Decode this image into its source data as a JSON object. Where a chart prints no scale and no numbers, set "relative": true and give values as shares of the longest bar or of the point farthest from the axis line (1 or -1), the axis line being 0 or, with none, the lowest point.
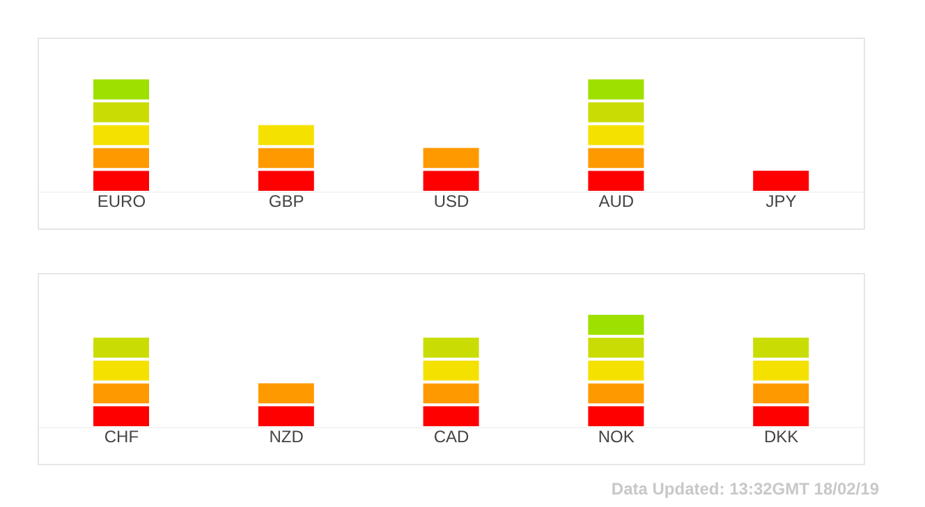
{
  "chart_data": [
    {
      "type": "bar",
      "stacked": true,
      "relative": true,
      "categories": [
        "EURO",
        "GBP",
        "USD",
        "AUD",
        "JPY"
      ],
      "series": [
        {
          "color": "#ff0000",
          "values": [
            0.2,
            0.2,
            0.2,
            0.2,
            0.2
          ]
        },
        {
          "color": "#ff9900",
          "values": [
            0.2,
            0.2,
            0.2,
            0.2,
            null
          ]
        },
        {
          "color": "#f5e100",
          "values": [
            0.2,
            0.2,
            null,
            0.2,
            null
          ]
        },
        {
          "color": "#c9dd05",
          "values": [
            0.2,
            null,
            null,
            0.2,
            null
          ]
        },
        {
          "color": "#9ee000",
          "values": [
            0.2,
            null,
            null,
            0.2,
            null
          ]
        }
      ]
    },
    {
      "type": "bar",
      "stacked": true,
      "relative": true,
      "categories": [
        "CHF",
        "NZD",
        "CAD",
        "NOK",
        "DKK"
      ],
      "series": [
        {
          "color": "#ff0000",
          "values": [
            0.2,
            0.2,
            0.2,
            0.2,
            0.2
          ]
        },
        {
          "color": "#ff9900",
          "values": [
            0.2,
            0.2,
            0.2,
            0.2,
            0.2
          ]
        },
        {
          "color": "#f5e100",
          "values": [
            0.2,
            null,
            0.2,
            0.2,
            0.2
          ]
        },
        {
          "color": "#c9dd05",
          "values": [
            0.2,
            null,
            0.2,
            0.2,
            0.2
          ]
        },
        {
          "color": "#9ee000",
          "values": [
            null,
            null,
            null,
            0.2,
            null
          ]
        }
      ],
      "annotations": [
        "Data Updated: 13:32GMT 18/02/19"
      ]
    }
  ]
}
